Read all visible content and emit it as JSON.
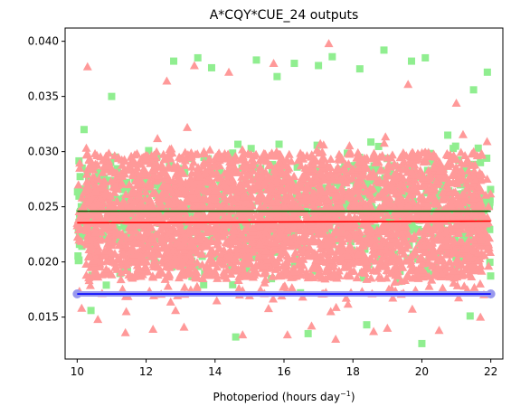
{
  "chart_data": {
    "type": "scatter",
    "title": "A*CQY*CUE_24 outputs",
    "xlabel": "Photoperiod (hours day",
    "xlabel_sup": "−1",
    "xlabel_tail": ")",
    "ylabel": "",
    "xlim": [
      9.65,
      22.35
    ],
    "ylim": [
      0.0112,
      0.0412
    ],
    "xticks": [
      10,
      12,
      14,
      16,
      18,
      20,
      22
    ],
    "xtick_labels": [
      "10",
      "12",
      "14",
      "16",
      "18",
      "20",
      "22"
    ],
    "yticks": [
      0.015,
      0.02,
      0.025,
      0.03,
      0.035,
      0.04
    ],
    "ytick_labels": [
      "0.015",
      "0.020",
      "0.025",
      "0.030",
      "0.035",
      "0.040"
    ],
    "grid": false,
    "legend": "none",
    "series": [
      {
        "marker": "square",
        "color": "#90ee90",
        "x_range": [
          10.0,
          22.0
        ],
        "center": 0.0246,
        "core_range": [
          0.0172,
          0.0335
        ],
        "outliers": [
          [
            12.8,
            0.0382
          ],
          [
            13.5,
            0.0385
          ],
          [
            15.2,
            0.0383
          ],
          [
            16.3,
            0.038
          ],
          [
            17.0,
            0.0378
          ],
          [
            17.4,
            0.0386
          ],
          [
            18.2,
            0.0375
          ],
          [
            18.9,
            0.0392
          ],
          [
            20.1,
            0.0385
          ],
          [
            21.9,
            0.0372
          ],
          [
            21.5,
            0.0356
          ],
          [
            11.0,
            0.035
          ],
          [
            10.2,
            0.032
          ],
          [
            21.7,
            0.029
          ],
          [
            20.0,
            0.0126
          ],
          [
            14.6,
            0.0132
          ],
          [
            16.7,
            0.0135
          ],
          [
            10.4,
            0.0156
          ],
          [
            21.4,
            0.0151
          ],
          [
            18.4,
            0.0143
          ],
          [
            19.7,
            0.0382
          ],
          [
            15.8,
            0.0368
          ],
          [
            13.9,
            0.0376
          ]
        ]
      },
      {
        "marker": "triangle",
        "color": "#ff9999",
        "x_range": [
          10.0,
          22.0
        ],
        "center": 0.0236,
        "core_range": [
          0.0155,
          0.0345
        ],
        "outliers": [
          [
            10.3,
            0.0377
          ],
          [
            17.3,
            0.0398
          ],
          [
            13.4,
            0.0378
          ],
          [
            14.4,
            0.0372
          ],
          [
            15.7,
            0.038
          ],
          [
            12.6,
            0.0364
          ],
          [
            19.6,
            0.0361
          ],
          [
            21.0,
            0.0344
          ],
          [
            11.4,
            0.0136
          ],
          [
            12.2,
            0.0139
          ],
          [
            14.8,
            0.0134
          ],
          [
            16.1,
            0.0134
          ],
          [
            17.5,
            0.013
          ],
          [
            19.0,
            0.014
          ],
          [
            20.5,
            0.0138
          ],
          [
            21.7,
            0.015
          ],
          [
            10.6,
            0.0148
          ],
          [
            13.1,
            0.0141
          ],
          [
            18.6,
            0.0137
          ],
          [
            16.8,
            0.0142
          ]
        ]
      }
    ],
    "lines": [
      {
        "name": "",
        "color": "#006400",
        "x": [
          10.0,
          22.0
        ],
        "y": [
          0.0246,
          0.0246
        ]
      },
      {
        "name": "",
        "color": "#ff0000",
        "x": [
          10.0,
          22.0
        ],
        "y": [
          0.02355,
          0.0237
        ]
      },
      {
        "name": "",
        "color": "#0000ff",
        "x": [
          10.0,
          22.0
        ],
        "y": [
          0.0171,
          0.0171
        ],
        "marker_color": "#9999ee"
      }
    ]
  }
}
